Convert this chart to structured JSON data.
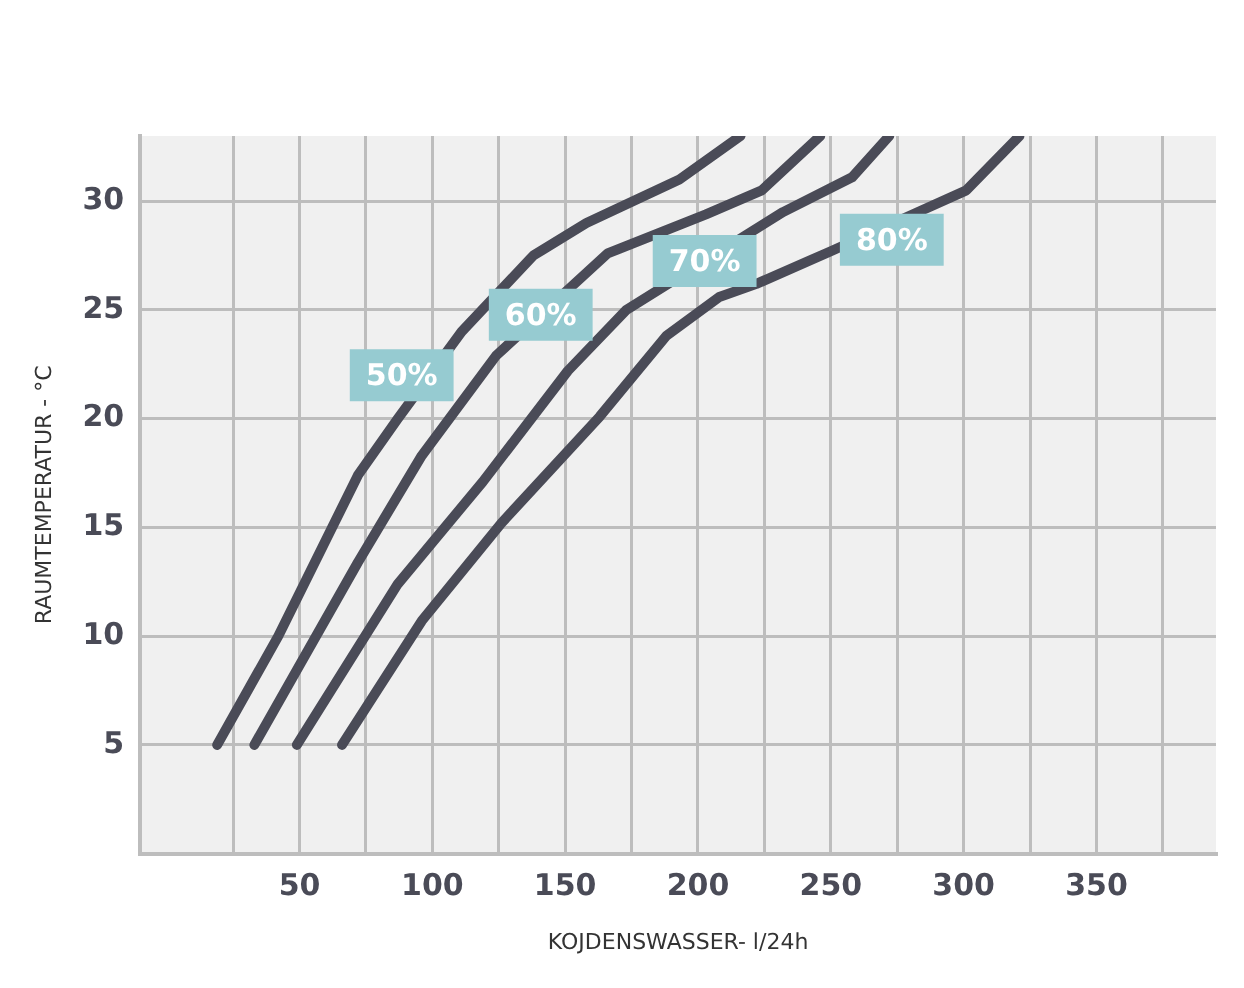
{
  "chart_data": {
    "type": "line",
    "xlabel": "KOJDENSWASSER- l/24h",
    "ylabel": "RAUMTEMPERATUR - °C",
    "xlim": [
      -10,
      395
    ],
    "ylim": [
      0,
      33
    ],
    "xticks": [
      {
        "value": 25,
        "label": null
      },
      50,
      {
        "value": 75,
        "label": null
      },
      100,
      {
        "value": 125,
        "label": null
      },
      150,
      {
        "value": 175,
        "label": null
      },
      200,
      {
        "value": 225,
        "label": null
      },
      250,
      {
        "value": 275,
        "label": null
      },
      300,
      {
        "value": 325,
        "label": null
      },
      350,
      {
        "value": 375,
        "label": null
      }
    ],
    "yticks": [
      5,
      10,
      15,
      20,
      25,
      30
    ],
    "grid": true,
    "legend": false,
    "marker": "none",
    "line_style": "solid",
    "series": [
      {
        "name": "50%",
        "color": "#4a4b57",
        "x": [
          19,
          42,
          72,
          87,
          111,
          138,
          158,
          193,
          216
        ],
        "values": [
          5,
          10,
          17.4,
          20,
          24,
          27.5,
          29,
          31,
          33
        ]
      },
      {
        "name": "60%",
        "color": "#4a4b57",
        "x": [
          33,
          72,
          96,
          124,
          166,
          203,
          224,
          246
        ],
        "values": [
          5,
          13.4,
          18.3,
          22.9,
          27.6,
          29.4,
          30.5,
          33
        ]
      },
      {
        "name": "70%",
        "color": "#4a4b57",
        "x": [
          49,
          87,
          119,
          151,
          173,
          232,
          258,
          272
        ],
        "values": [
          5,
          12.4,
          17.1,
          22.2,
          25,
          29.5,
          31.1,
          33
        ]
      },
      {
        "name": "80%",
        "color": "#4a4b57",
        "x": [
          66,
          96,
          126,
          163,
          188,
          208,
          222,
          250,
          301,
          321
        ],
        "values": [
          5,
          10.7,
          15.2,
          20.1,
          23.8,
          25.6,
          26.2,
          27.7,
          30.5,
          33
        ]
      }
    ]
  }
}
